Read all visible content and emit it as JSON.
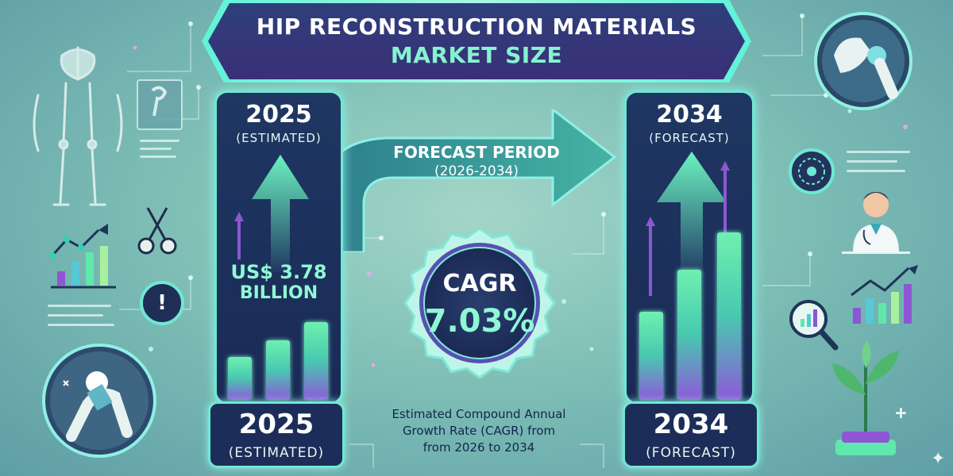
{
  "title": {
    "line1": "HIP RECONSTRUCTION MATERIALS",
    "line2": "MARKET SIZE"
  },
  "left_panel": {
    "year": "2025",
    "label": "(ESTIMATED)",
    "value": "US$ 3.78",
    "unit": "BILLION",
    "bar_levels": [
      0.3,
      0.42,
      0.55
    ]
  },
  "right_panel": {
    "year": "2034",
    "label": "(FORECAST)",
    "bar_levels": [
      0.42,
      0.62,
      0.8
    ]
  },
  "forecast": {
    "line1": "FORECAST PERIOD",
    "line2": "(2026-2034)"
  },
  "cagr": {
    "label": "CAGR",
    "value": "7.03%",
    "description_line1": "Estimated Compound Annual",
    "description_line2": "Growth Rate (CAGR) from",
    "description_line3": "from 2026 to 2034"
  },
  "left_bottom": {
    "year": "2025",
    "label": "(ESTIMATED)"
  },
  "right_bottom": {
    "year": "2034",
    "label": "(FORECAST)"
  },
  "icons": {
    "top_left": "skeleton-icon",
    "top_left_monitor": "xray-monitor-icon",
    "scissors": "surgical-tools-icon",
    "line_chart_left": "growth-chart-icon",
    "alert": "alert-icon",
    "hip_implant_left": "hip-implant-icon",
    "hip_joint_right": "hip-joint-icon",
    "gear": "gear-icon",
    "doctor": "doctor-icon",
    "line_chart_right": "growth-chart-icon",
    "magnifier": "magnifier-chart-icon",
    "plant": "plant-icon"
  },
  "colors": {
    "accent": "#6fe8d2",
    "title_bg": "#2e3f7a",
    "bar_top": "#6ef0b0",
    "bar_bottom": "#8c5ad8",
    "arrow": "#2f7f88"
  }
}
